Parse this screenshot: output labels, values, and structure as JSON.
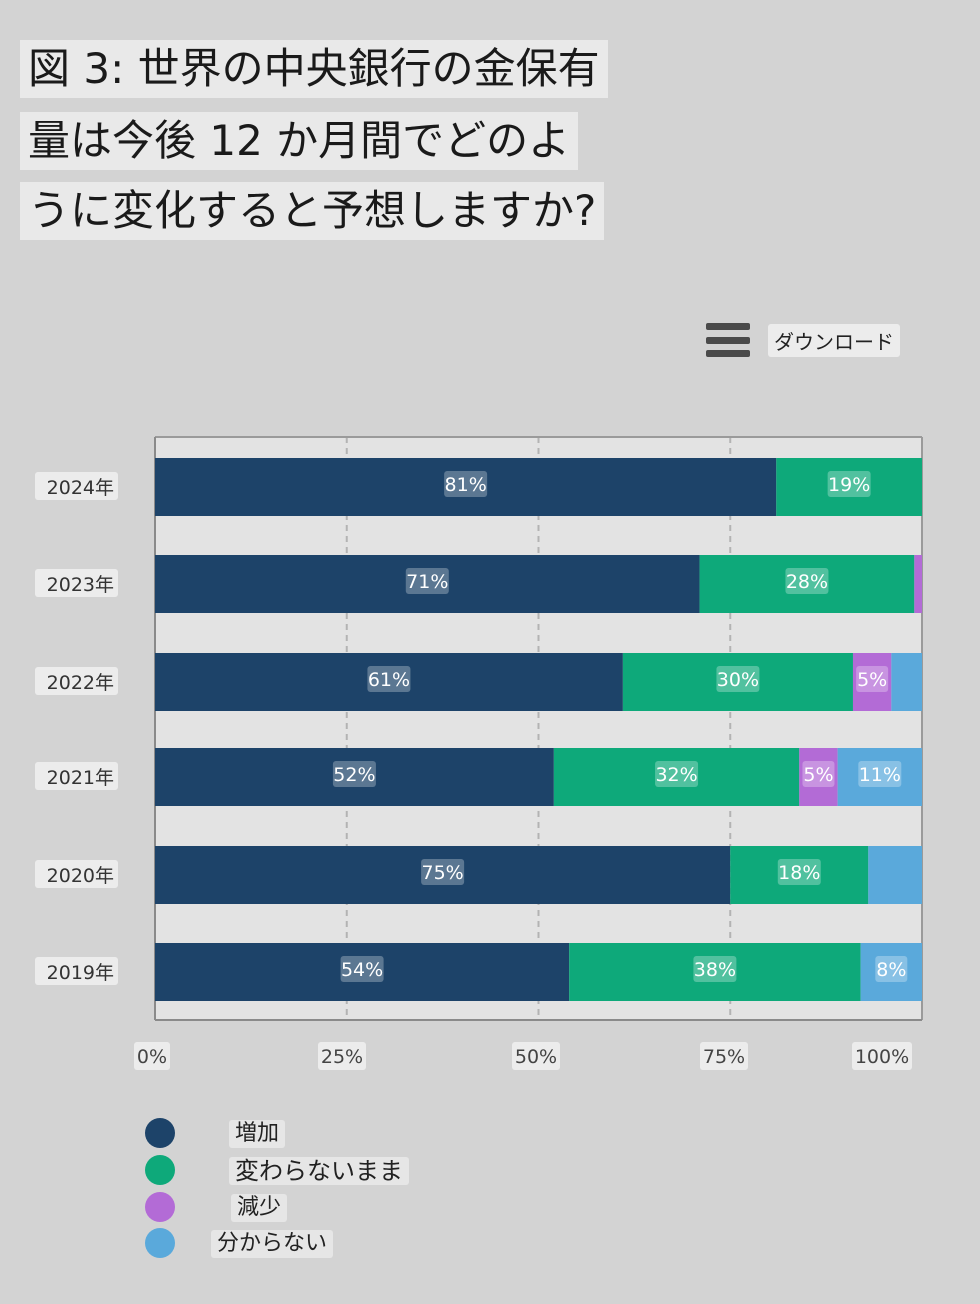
{
  "title": {
    "line1": "図 3: 世界の中央銀行の金保有",
    "line2": "量は今後 12 か月間でどのよ",
    "line3": "うに変化すると予想しますか?"
  },
  "toolbar": {
    "download_label": "ダウンロード",
    "menu_icon": "hamburger-menu-icon"
  },
  "colors": {
    "increase": "#1d4369",
    "unchanged": "#0ea97a",
    "decrease": "#b36bd6",
    "unknown": "#5aa9db"
  },
  "chart_data": {
    "type": "bar",
    "orientation": "horizontal",
    "stacked": true,
    "categories": [
      "2024年",
      "2023年",
      "2022年",
      "2021年",
      "2020年",
      "2019年"
    ],
    "series": [
      {
        "name": "増加",
        "values": [
          81,
          71,
          61,
          52,
          75,
          54
        ],
        "labels": [
          "81%",
          "71%",
          "61%",
          "52%",
          "75%",
          "54%"
        ]
      },
      {
        "name": "変わらないまま",
        "values": [
          19,
          28,
          30,
          32,
          18,
          38
        ],
        "labels": [
          "19%",
          "28%",
          "30%",
          "32%",
          "18%",
          "38%"
        ]
      },
      {
        "name": "減少",
        "values": [
          0,
          1,
          5,
          5,
          0,
          0
        ],
        "labels": [
          "",
          "",
          "5%",
          "5%",
          "",
          ""
        ]
      },
      {
        "name": "分からない",
        "values": [
          0,
          0,
          4,
          11,
          7,
          8
        ],
        "labels": [
          "",
          "",
          "",
          "11%",
          "",
          "8%"
        ]
      }
    ],
    "xlim": [
      0,
      100
    ],
    "xticks": [
      "0%",
      "25%",
      "50%",
      "75%",
      "100%"
    ],
    "grid": true,
    "legend_position": "bottom-left"
  }
}
